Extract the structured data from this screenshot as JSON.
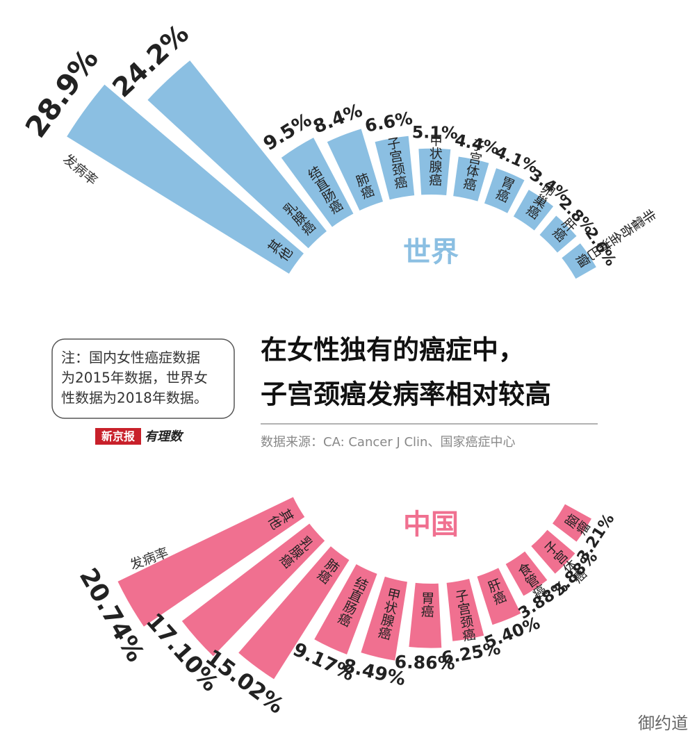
{
  "chart_data": [
    {
      "type": "radial_bar",
      "title": "世界",
      "axis_label": "发病率",
      "categories": [
        "其他",
        "乳腺癌",
        "结直肠癌",
        "肺癌",
        "子宫颈癌",
        "甲状腺癌",
        "子宫体癌",
        "胃癌",
        "卵巢癌",
        "肝癌",
        "非霍奇金淋巴瘤"
      ],
      "values": [
        28.9,
        24.2,
        9.5,
        8.4,
        6.6,
        5.1,
        4.4,
        4.1,
        3.4,
        2.8,
        2.6
      ],
      "value_labels": [
        "28.9%",
        "24.2%",
        "9.5%",
        "8.4%",
        "6.6%",
        "5.1%",
        "4.4%",
        "4.1%",
        "3.4%",
        "2.8%",
        "2.6%"
      ],
      "color": "#8bbfe2",
      "highlight_index": 4,
      "highlight_color": "#6aaedc"
    },
    {
      "type": "radial_bar",
      "title": "中国",
      "axis_label": "发病率",
      "categories": [
        "其他",
        "乳腺癌",
        "肺癌",
        "结直肠癌",
        "甲状腺癌",
        "胃癌",
        "子宫颈癌",
        "肝癌",
        "食管癌",
        "子宫体癌",
        "脑瘤"
      ],
      "values": [
        20.74,
        17.1,
        15.02,
        9.17,
        8.49,
        6.86,
        6.25,
        5.4,
        3.88,
        3.88,
        3.21
      ],
      "value_labels": [
        "20.74%",
        "17.10%",
        "15.02%",
        "9.17%",
        "8.49%",
        "6.86%",
        "6.25%",
        "5.40%",
        "3.88%",
        "3.88%",
        "3.21%"
      ],
      "color": "#f07090",
      "highlight_index": 6,
      "highlight_color": "#ef6e8f"
    }
  ],
  "title_lines": [
    "在女性独有的癌症中，",
    "子宫颈癌发病率相对较高"
  ],
  "source": "数据来源：CA: Cancer J Clin、国家癌症中心",
  "note_lines": [
    "注：国内女性癌症数据",
    "为2015年数据，世界女",
    "性数据为2018年数据。"
  ],
  "logo": [
    "新京报",
    "有理数"
  ],
  "watermark": "御约道"
}
